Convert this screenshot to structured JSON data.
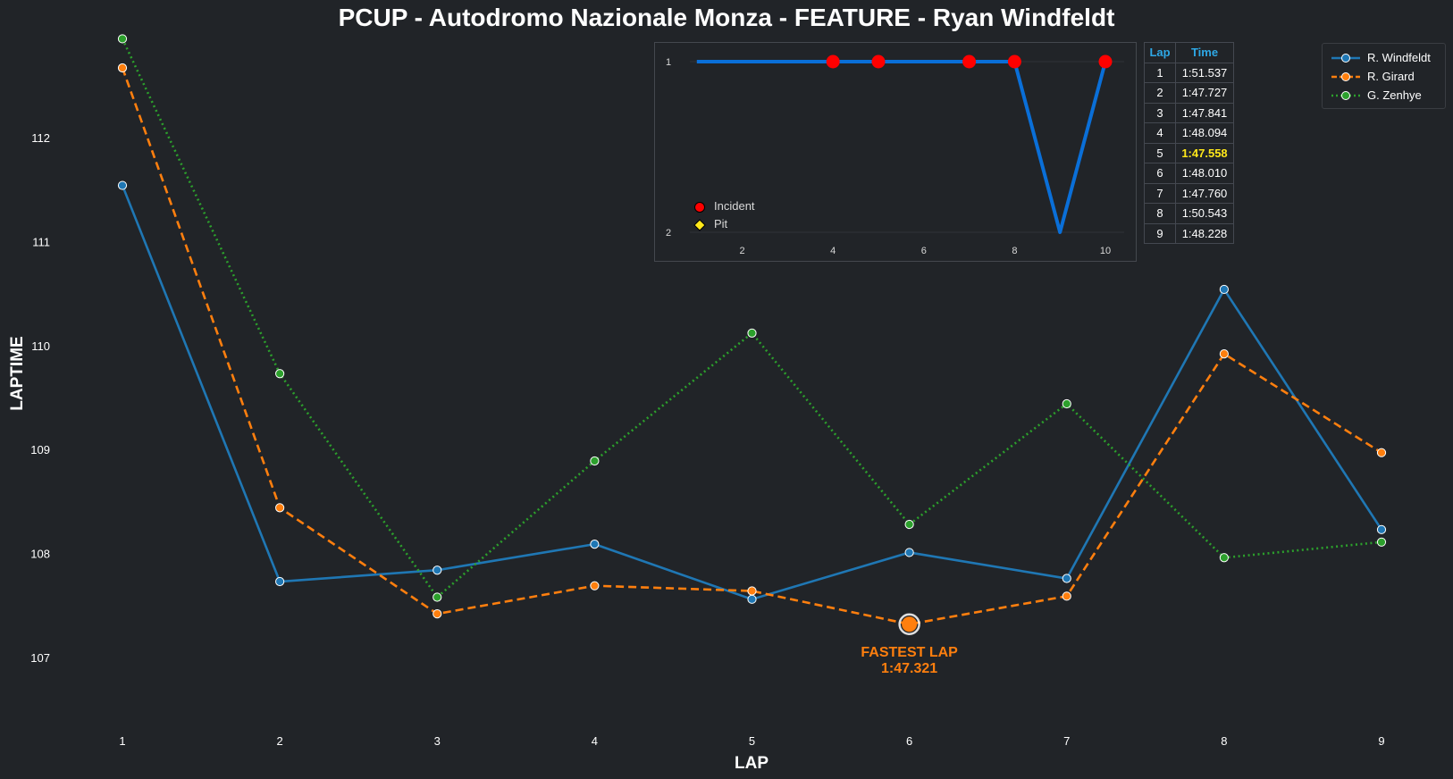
{
  "title": "PCUP - Autodromo Nazionale Monza - FEATURE - Ryan Windfeldt",
  "colors": {
    "background": "#212428",
    "windfeldt": "#1f77b4",
    "girard": "#ff7f0e",
    "zenhye": "#2ca02c",
    "inset_line": "#0a6fd8",
    "incident": "#ff0000",
    "pit": "#ffe81a",
    "table_header": "#2ea8e6",
    "best_lap": "#ffe81a"
  },
  "chart_data": [
    {
      "type": "line",
      "xlabel": "LAP",
      "ylabel": "LAPTIME",
      "x": [
        1,
        2,
        3,
        4,
        5,
        6,
        7,
        8,
        9
      ],
      "x_ticks": [
        "1",
        "2",
        "3",
        "4",
        "5",
        "6",
        "7",
        "8",
        "9"
      ],
      "y_ticks": [
        "107",
        "108",
        "109",
        "110",
        "111",
        "112"
      ],
      "ylim": [
        106.3,
        112.95
      ],
      "grid": false,
      "legend_position": "top-right",
      "series": [
        {
          "name": "R. Windfeldt",
          "style": "solid",
          "values": [
            111.54,
            107.73,
            107.84,
            108.09,
            107.56,
            108.01,
            107.76,
            110.54,
            108.23
          ]
        },
        {
          "name": "R. Girard",
          "style": "dashed",
          "values": [
            112.67,
            108.44,
            107.42,
            107.69,
            107.64,
            107.32,
            107.59,
            109.92,
            108.97
          ]
        },
        {
          "name": "G. Zenhye",
          "style": "dotted",
          "values": [
            112.95,
            109.73,
            107.58,
            108.89,
            110.12,
            108.28,
            109.44,
            107.96,
            108.11
          ]
        }
      ],
      "annotation": {
        "series": "R. Girard",
        "x": 6,
        "y": 107.32,
        "label_line1": "FASTEST LAP",
        "label_line2": "1:47.321"
      }
    },
    {
      "type": "line",
      "x": [
        1,
        2,
        3,
        4,
        5,
        6,
        7,
        8,
        9,
        10
      ],
      "values": [
        1,
        1,
        1,
        1,
        1,
        1,
        1,
        1,
        2,
        1
      ],
      "x_ticks": [
        "2",
        "4",
        "6",
        "8",
        "10"
      ],
      "y_ticks": [
        "1",
        "2"
      ],
      "y_inverted": true,
      "incidents": [
        4,
        5,
        7,
        8,
        10
      ],
      "pits": [],
      "legend": [
        {
          "label": "Incident",
          "marker": "circle"
        },
        {
          "label": "Pit",
          "marker": "diamond"
        }
      ]
    },
    {
      "type": "table",
      "columns": [
        "Lap",
        "Time"
      ],
      "rows": [
        [
          "1",
          "1:51.537"
        ],
        [
          "2",
          "1:47.727"
        ],
        [
          "3",
          "1:47.841"
        ],
        [
          "4",
          "1:48.094"
        ],
        [
          "5",
          "1:47.558"
        ],
        [
          "6",
          "1:48.010"
        ],
        [
          "7",
          "1:47.760"
        ],
        [
          "8",
          "1:50.543"
        ],
        [
          "9",
          "1:48.228"
        ]
      ],
      "best_row": 4
    }
  ]
}
